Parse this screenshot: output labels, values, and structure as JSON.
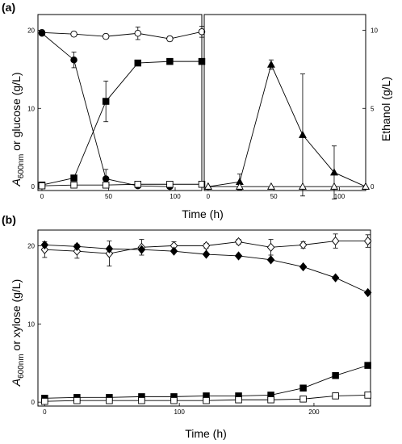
{
  "chart_data": [
    {
      "panel": "(a)",
      "type": "line",
      "xlabel": "Time (h)",
      "ylabel_left": "A600nm or glucose (g/L)",
      "ylabel_right": "Ethanol (g/L)",
      "left_plot": {
        "xlim": [
          -3,
          120
        ],
        "ylim": [
          -0.5,
          22
        ],
        "xticks": [
          0,
          50,
          100
        ],
        "yticks": [
          0,
          10,
          20
        ],
        "series": [
          {
            "marker": "circle-open",
            "x": [
              0,
              24,
              48,
              72,
              96,
              120
            ],
            "y": [
              19.7,
              19.5,
              19.2,
              19.6,
              18.9,
              19.8
            ],
            "err": [
              0.3,
              0.3,
              0.3,
              0.8,
              0.3,
              0.7
            ]
          },
          {
            "marker": "circle-filled",
            "x": [
              0,
              24,
              48,
              72,
              96
            ],
            "y": [
              19.6,
              16.2,
              1.0,
              0.1,
              0.0
            ],
            "err": [
              0,
              1.0,
              1.2,
              0,
              0
            ]
          },
          {
            "marker": "square-filled",
            "x": [
              0,
              24,
              48,
              72,
              96,
              120
            ],
            "y": [
              0.2,
              1.1,
              10.9,
              15.8,
              16.0,
              16.0
            ],
            "err": [
              0,
              0,
              2.6,
              0,
              0,
              0
            ]
          },
          {
            "marker": "square-open",
            "x": [
              0,
              24,
              48,
              72,
              96,
              120
            ],
            "y": [
              0.1,
              0.2,
              0.2,
              0.3,
              0.3,
              0.3
            ],
            "err": [
              0,
              0,
              0,
              0,
              0,
              0
            ]
          }
        ]
      },
      "right_plot": {
        "xlim": [
          -3,
          120
        ],
        "ylim": [
          -0.25,
          11
        ],
        "xticks": [
          0,
          50,
          100
        ],
        "yticks": [
          0,
          5,
          10
        ],
        "series": [
          {
            "marker": "triangle-filled",
            "x": [
              0,
              24,
              48,
              72,
              96,
              120
            ],
            "y": [
              0.0,
              0.3,
              7.8,
              3.3,
              0.9,
              0.0
            ],
            "err": [
              0,
              0.5,
              0.3,
              3.9,
              1.7,
              0
            ]
          },
          {
            "marker": "triangle-open",
            "x": [
              0,
              24,
              48,
              72,
              96,
              120
            ],
            "y": [
              0.0,
              0.0,
              0.0,
              0.0,
              0.0,
              0.0
            ],
            "err": [
              0,
              0,
              0,
              0,
              0,
              0
            ]
          }
        ]
      }
    },
    {
      "panel": "(b)",
      "type": "line",
      "xlabel": "Time (h)",
      "ylabel": "A600nm or xylose (g/L)",
      "xlim": [
        -5,
        242
      ],
      "ylim": [
        -0.5,
        22
      ],
      "xticks": [
        0,
        100,
        200
      ],
      "yticks": [
        0,
        10,
        20
      ],
      "series": [
        {
          "marker": "diamond-open",
          "x": [
            0,
            24,
            48,
            72,
            96,
            120,
            144,
            168,
            192,
            216,
            240
          ],
          "y": [
            19.5,
            19.3,
            19.0,
            19.8,
            20.0,
            20.0,
            20.5,
            19.8,
            20.1,
            20.6,
            20.6
          ],
          "err": [
            1.0,
            0.9,
            1.6,
            1.0,
            0.5,
            0.3,
            0.3,
            1.0,
            0.4,
            0.9,
            0.8
          ]
        },
        {
          "marker": "diamond-filled",
          "x": [
            0,
            24,
            48,
            72,
            96,
            120,
            144,
            168,
            192,
            216,
            240
          ],
          "y": [
            20.1,
            19.9,
            19.6,
            19.5,
            19.3,
            18.9,
            18.7,
            18.2,
            17.3,
            15.9,
            14.0
          ],
          "err": [
            0,
            0,
            0,
            0,
            0,
            0,
            0,
            0,
            0,
            0,
            0
          ]
        },
        {
          "marker": "square-filled",
          "x": [
            0,
            24,
            48,
            72,
            96,
            120,
            144,
            168,
            192,
            216,
            240
          ],
          "y": [
            0.5,
            0.6,
            0.6,
            0.7,
            0.7,
            0.8,
            0.8,
            0.9,
            1.8,
            3.4,
            4.7
          ],
          "err": [
            0,
            0,
            0,
            0,
            0,
            0,
            0,
            0,
            0,
            0,
            0
          ]
        },
        {
          "marker": "square-open",
          "x": [
            0,
            24,
            48,
            72,
            96,
            120,
            144,
            168,
            192,
            216,
            240
          ],
          "y": [
            0.1,
            0.2,
            0.2,
            0.2,
            0.2,
            0.2,
            0.3,
            0.3,
            0.4,
            0.8,
            0.9
          ],
          "err": [
            0,
            0,
            0,
            0,
            0,
            0,
            0,
            0,
            0,
            0,
            0
          ]
        }
      ]
    }
  ]
}
